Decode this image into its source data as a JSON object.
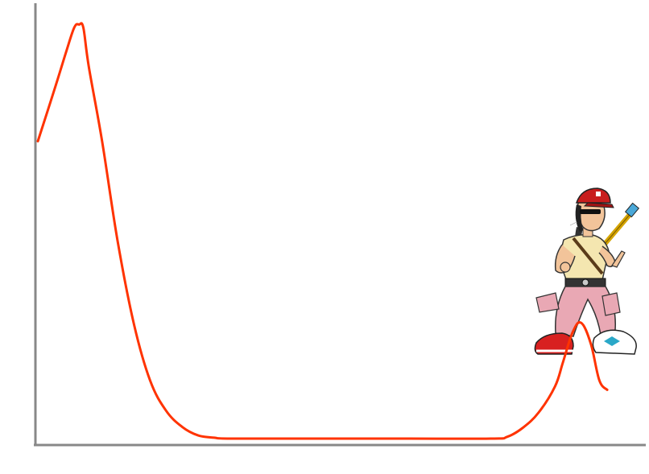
{
  "chart_data": {
    "type": "line",
    "title": "",
    "xlabel": "",
    "ylabel": "",
    "grid": false,
    "legend": "none",
    "xlim": [
      0,
      100
    ],
    "ylim": [
      0,
      100
    ],
    "series": [
      {
        "color": "#ff3300",
        "x": [
          0,
          2.7,
          4.6,
          6.0,
          6.8,
          7.5,
          8.4,
          10.6,
          13.2,
          15.9,
          18.5,
          21.1,
          23.8,
          26.4,
          29.1,
          31.7,
          45.0,
          60.0,
          74.7,
          77.4,
          80.0,
          82.6,
          85.3,
          86.6,
          88.2,
          89.6,
          91.2,
          92.6,
          93.9
        ],
        "y": [
          68.3,
          80.0,
          88.5,
          94.4,
          95.1,
          94.4,
          85.4,
          68.3,
          45.0,
          26.0,
          13.4,
          6.5,
          2.7,
          0.75,
          0.2,
          0.0,
          0.0,
          0.0,
          0.0,
          0.4,
          2.5,
          6.0,
          12.0,
          17.5,
          24.4,
          26.6,
          21.8,
          13.4,
          11.2
        ]
      }
    ],
    "overlay_icon": "cartoon-rocker-figure"
  },
  "colors": {
    "axis": "#888888",
    "line": "#ff3300"
  }
}
